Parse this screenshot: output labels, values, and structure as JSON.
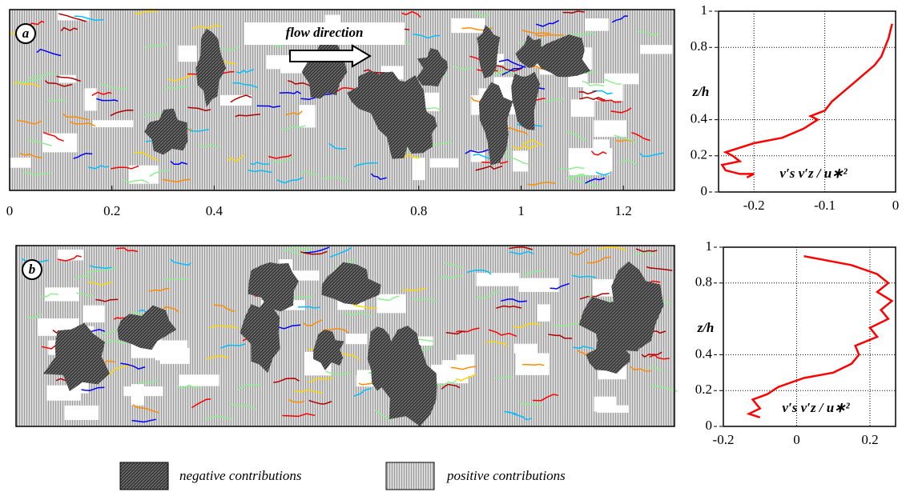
{
  "chart_data": [
    {
      "type": "field",
      "panel_label": "a",
      "annotation": "flow direction",
      "xlim": [
        0,
        1.3
      ],
      "xticks": [
        0,
        0.2,
        0.4,
        0.8,
        1,
        1.2
      ]
    },
    {
      "type": "line",
      "ylabel": "z/h",
      "xlabel": "v′s v′z / u∗²",
      "color": "#ff0000",
      "xlim": [
        -0.25,
        0
      ],
      "xticks": [
        -0.2,
        -0.1,
        0
      ],
      "ylim": [
        0,
        1
      ],
      "yticks": [
        0,
        0.2,
        0.4,
        0.8,
        1
      ],
      "grid": true,
      "x": [
        -0.005,
        -0.01,
        -0.015,
        -0.02,
        -0.03,
        -0.045,
        -0.06,
        -0.075,
        -0.09,
        -0.1,
        -0.12,
        -0.11,
        -0.13,
        -0.16,
        -0.2,
        -0.24,
        -0.23,
        -0.22,
        -0.245,
        -0.24,
        -0.22,
        -0.2,
        -0.21
      ],
      "values": [
        0.93,
        0.85,
        0.8,
        0.75,
        0.7,
        0.65,
        0.6,
        0.55,
        0.5,
        0.45,
        0.42,
        0.4,
        0.35,
        0.3,
        0.27,
        0.22,
        0.2,
        0.17,
        0.15,
        0.12,
        0.1,
        0.1,
        0.08
      ]
    },
    {
      "type": "field",
      "panel_label": "b"
    },
    {
      "type": "line",
      "ylabel": "z/h",
      "xlabel": "v′s v′z / u∗²",
      "color": "#ff0000",
      "xlim": [
        -0.2,
        0.27
      ],
      "xticks": [
        -0.2,
        0,
        0.2
      ],
      "ylim": [
        0,
        1
      ],
      "yticks": [
        0,
        0.2,
        0.4,
        0.8,
        1
      ],
      "grid": true,
      "x": [
        0.02,
        0.15,
        0.22,
        0.25,
        0.22,
        0.26,
        0.23,
        0.25,
        0.2,
        0.22,
        0.16,
        0.17,
        0.15,
        0.1,
        0.02,
        -0.05,
        -0.08,
        -0.12,
        -0.1,
        -0.13,
        -0.1
      ],
      "values": [
        0.95,
        0.9,
        0.85,
        0.8,
        0.75,
        0.7,
        0.65,
        0.6,
        0.55,
        0.5,
        0.45,
        0.4,
        0.35,
        0.3,
        0.27,
        0.22,
        0.18,
        0.15,
        0.1,
        0.07,
        0.05
      ]
    }
  ],
  "legend": {
    "negative": "negative contributions",
    "positive": "positive contributions"
  }
}
